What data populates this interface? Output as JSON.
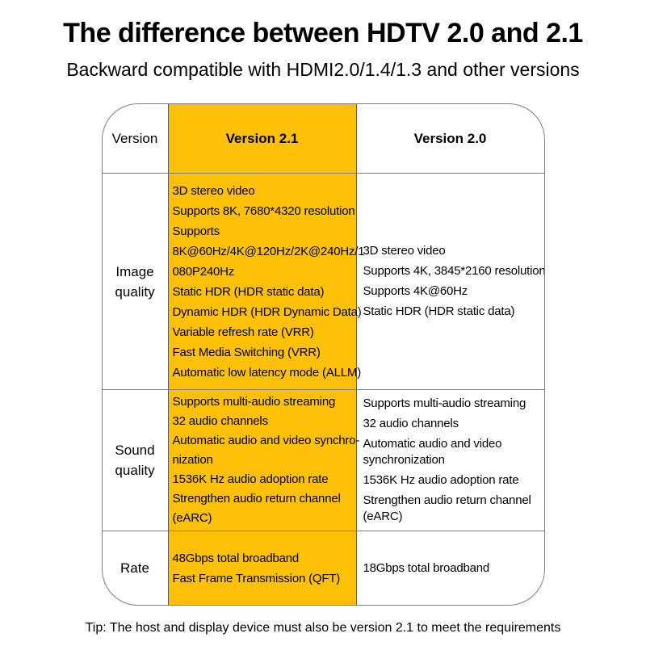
{
  "page": {
    "title": "The difference between HDTV 2.0 and 2.1",
    "subtitle": "Backward compatible with HDMI2.0/1.4/1.3 and other versions",
    "tip": "Tip: The host and display device must also be version 2.1 to meet the requirements"
  },
  "colors": {
    "highlight_yellow": "#FFC107",
    "border_gray": "#7F7F7F",
    "text": "#000000",
    "background": "#FFFFFF"
  },
  "table": {
    "header": {
      "label_col": "Version",
      "v21_col": "Version 2.1",
      "v20_col": "Version 2.0"
    },
    "rows": [
      {
        "label": "Image\nquality",
        "v21_lines": [
          "3D stereo video",
          "Supports 8K, 7680*4320 resolution",
          "Supports",
          "8K@60Hz/4K@120Hz/2K@240Hz/1",
          "080P240Hz",
          "Static HDR (HDR static data)",
          "Dynamic HDR (HDR Dynamic Data)",
          "Variable refresh rate (VRR)",
          "Fast Media Switching (VRR)",
          "Automatic low latency mode (ALLM)"
        ],
        "v20_items": [
          [
            "3D stereo video"
          ],
          [
            "Supports 4K, 3845*2160 resolution"
          ],
          [
            "Supports 4K@60Hz"
          ],
          [
            "Static HDR (HDR static data)"
          ]
        ]
      },
      {
        "label": "Sound\nquality",
        "v21_lines": [
          "Supports multi-audio streaming",
          "32 audio channels",
          "Automatic audio and video synchro-",
          "nization",
          "1536K Hz audio adoption rate",
          "Strengthen audio return channel",
          "(eARC)"
        ],
        "v20_items": [
          [
            "Supports multi-audio streaming"
          ],
          [
            "32 audio channels"
          ],
          [
            "Automatic audio and video",
            "synchronization"
          ],
          [
            "1536K Hz audio adoption rate"
          ],
          [
            "Strengthen audio return channel",
            "(eARC)"
          ]
        ]
      },
      {
        "label": "Rate",
        "v21_lines": [
          "48Gbps total broadband",
          "Fast Frame Transmission (QFT)"
        ],
        "v20_items": [
          [
            "18Gbps total broadband"
          ]
        ]
      }
    ]
  }
}
